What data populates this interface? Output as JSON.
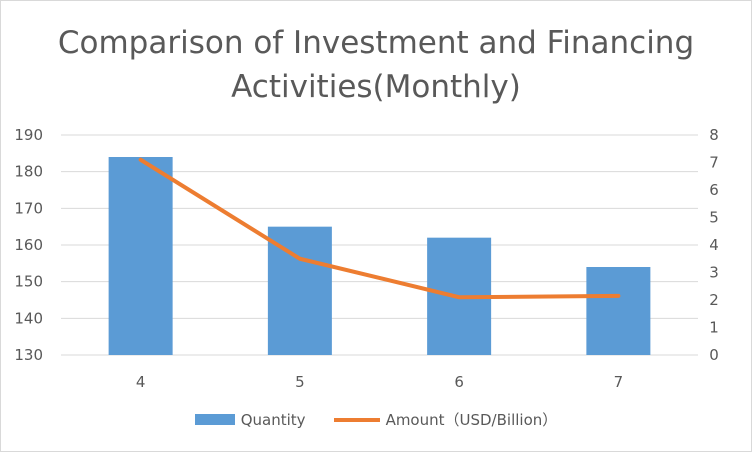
{
  "chart_data": {
    "type": "bar",
    "title": "Comparison of Investment and Financing Activities(Monthly)",
    "categories": [
      "4",
      "5",
      "6",
      "7"
    ],
    "series": [
      {
        "name": "Quantity",
        "kind": "bar",
        "axis": "left",
        "color": "#5b9bd5",
        "values": [
          184,
          165,
          162,
          154
        ]
      },
      {
        "name": "Amount（USD/Billion）",
        "kind": "line",
        "axis": "right",
        "color": "#ed7d31",
        "values": [
          7.1,
          3.5,
          2.1,
          2.15
        ]
      }
    ],
    "y_left": {
      "min": 130,
      "max": 190,
      "step": 10,
      "ticks": [
        "130",
        "140",
        "150",
        "160",
        "170",
        "180",
        "190"
      ]
    },
    "y_right": {
      "min": 0,
      "max": 8,
      "step": 1,
      "ticks": [
        "0",
        "1",
        "2",
        "3",
        "4",
        "5",
        "6",
        "7",
        "8"
      ]
    },
    "grid": true,
    "legend": "bottom"
  }
}
